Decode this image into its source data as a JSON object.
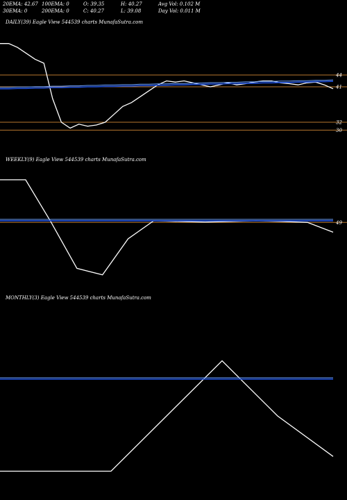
{
  "header": {
    "row1": {
      "ema20": "20EMA: 42.67",
      "ema100": "100EMA: 0",
      "open": "O: 39.35",
      "high": "H: 40.27",
      "avg_vol": "Avg Vol: 0.102  M"
    },
    "row2": {
      "ema30": "30EMA: 0",
      "ema200": "200EMA: 0",
      "close": "C: 40.27",
      "low": "L: 39.08",
      "day_vol": "Day Vol: 0.011  M"
    }
  },
  "panels": {
    "daily": {
      "label": "DAILY(39) Eagle  View  544539 charts MunafaSutra.com"
    },
    "weekly": {
      "label": "WEEKLY(9) Eagle  View  544539 charts MunafaSutra.com"
    },
    "monthly": {
      "label": "MONTHLY(3) Eagle  View  544539 charts MunafaSutra.com"
    }
  },
  "colors": {
    "background": "#000000",
    "price_line": "#ffffff",
    "ema_line": "#1f4fd8",
    "ema_band": "#6aa0ff",
    "level_line": "#b8772e"
  },
  "chart_data": [
    {
      "type": "line",
      "name": "daily",
      "right_tick_labels": [
        "44",
        "41",
        "32",
        "30"
      ],
      "levels": [
        44,
        41,
        32,
        30
      ],
      "series": [
        {
          "values": [
            52,
            52,
            51,
            49.5,
            48,
            47,
            38,
            32,
            30.5,
            31.5,
            31,
            31.3,
            32,
            34,
            36,
            37,
            38.5,
            40,
            41.5,
            42.5,
            42.2,
            42.5,
            42,
            41.5,
            41,
            41.5,
            42,
            41.5,
            41.8,
            42.2,
            42.5,
            42.5,
            42,
            41.8,
            41.5,
            42,
            42.2,
            41.5,
            40.5
          ]
        },
        {
          "values": [
            40.5,
            40.5,
            40.6,
            40.6,
            40.7,
            40.7,
            40.8,
            40.8,
            40.9,
            40.9,
            41,
            41,
            41.1,
            41.1,
            41.2,
            41.2,
            41.3,
            41.3,
            41.4,
            41.4,
            41.5,
            41.5,
            41.6,
            41.6,
            41.7,
            41.7,
            41.8,
            41.8,
            41.9,
            41.9,
            42,
            42,
            42.1,
            42.1,
            42.2,
            42.2,
            42.3,
            42.3,
            42.4
          ]
        }
      ]
    },
    {
      "type": "line",
      "name": "weekly",
      "right_tick_labels": [
        "49"
      ],
      "levels": [
        49
      ],
      "series": [
        {
          "values": [
            62,
            62,
            49,
            35,
            33,
            44,
            49.5,
            49.3,
            49.1,
            49.3,
            49.5,
            49.3,
            49,
            46
          ]
        },
        {
          "values": [
            49.5,
            49.5,
            49.5,
            49.5,
            49.5,
            49.5,
            49.5,
            49.5,
            49.5,
            49.5,
            49.5,
            49.5,
            49.5,
            49.5
          ]
        }
      ]
    },
    {
      "type": "line",
      "name": "monthly",
      "series": [
        {
          "values": [
            30,
            30,
            30,
            45,
            60,
            45,
            34
          ]
        },
        {
          "values": [
            55,
            55,
            55,
            55,
            55,
            55,
            55
          ]
        }
      ]
    }
  ]
}
